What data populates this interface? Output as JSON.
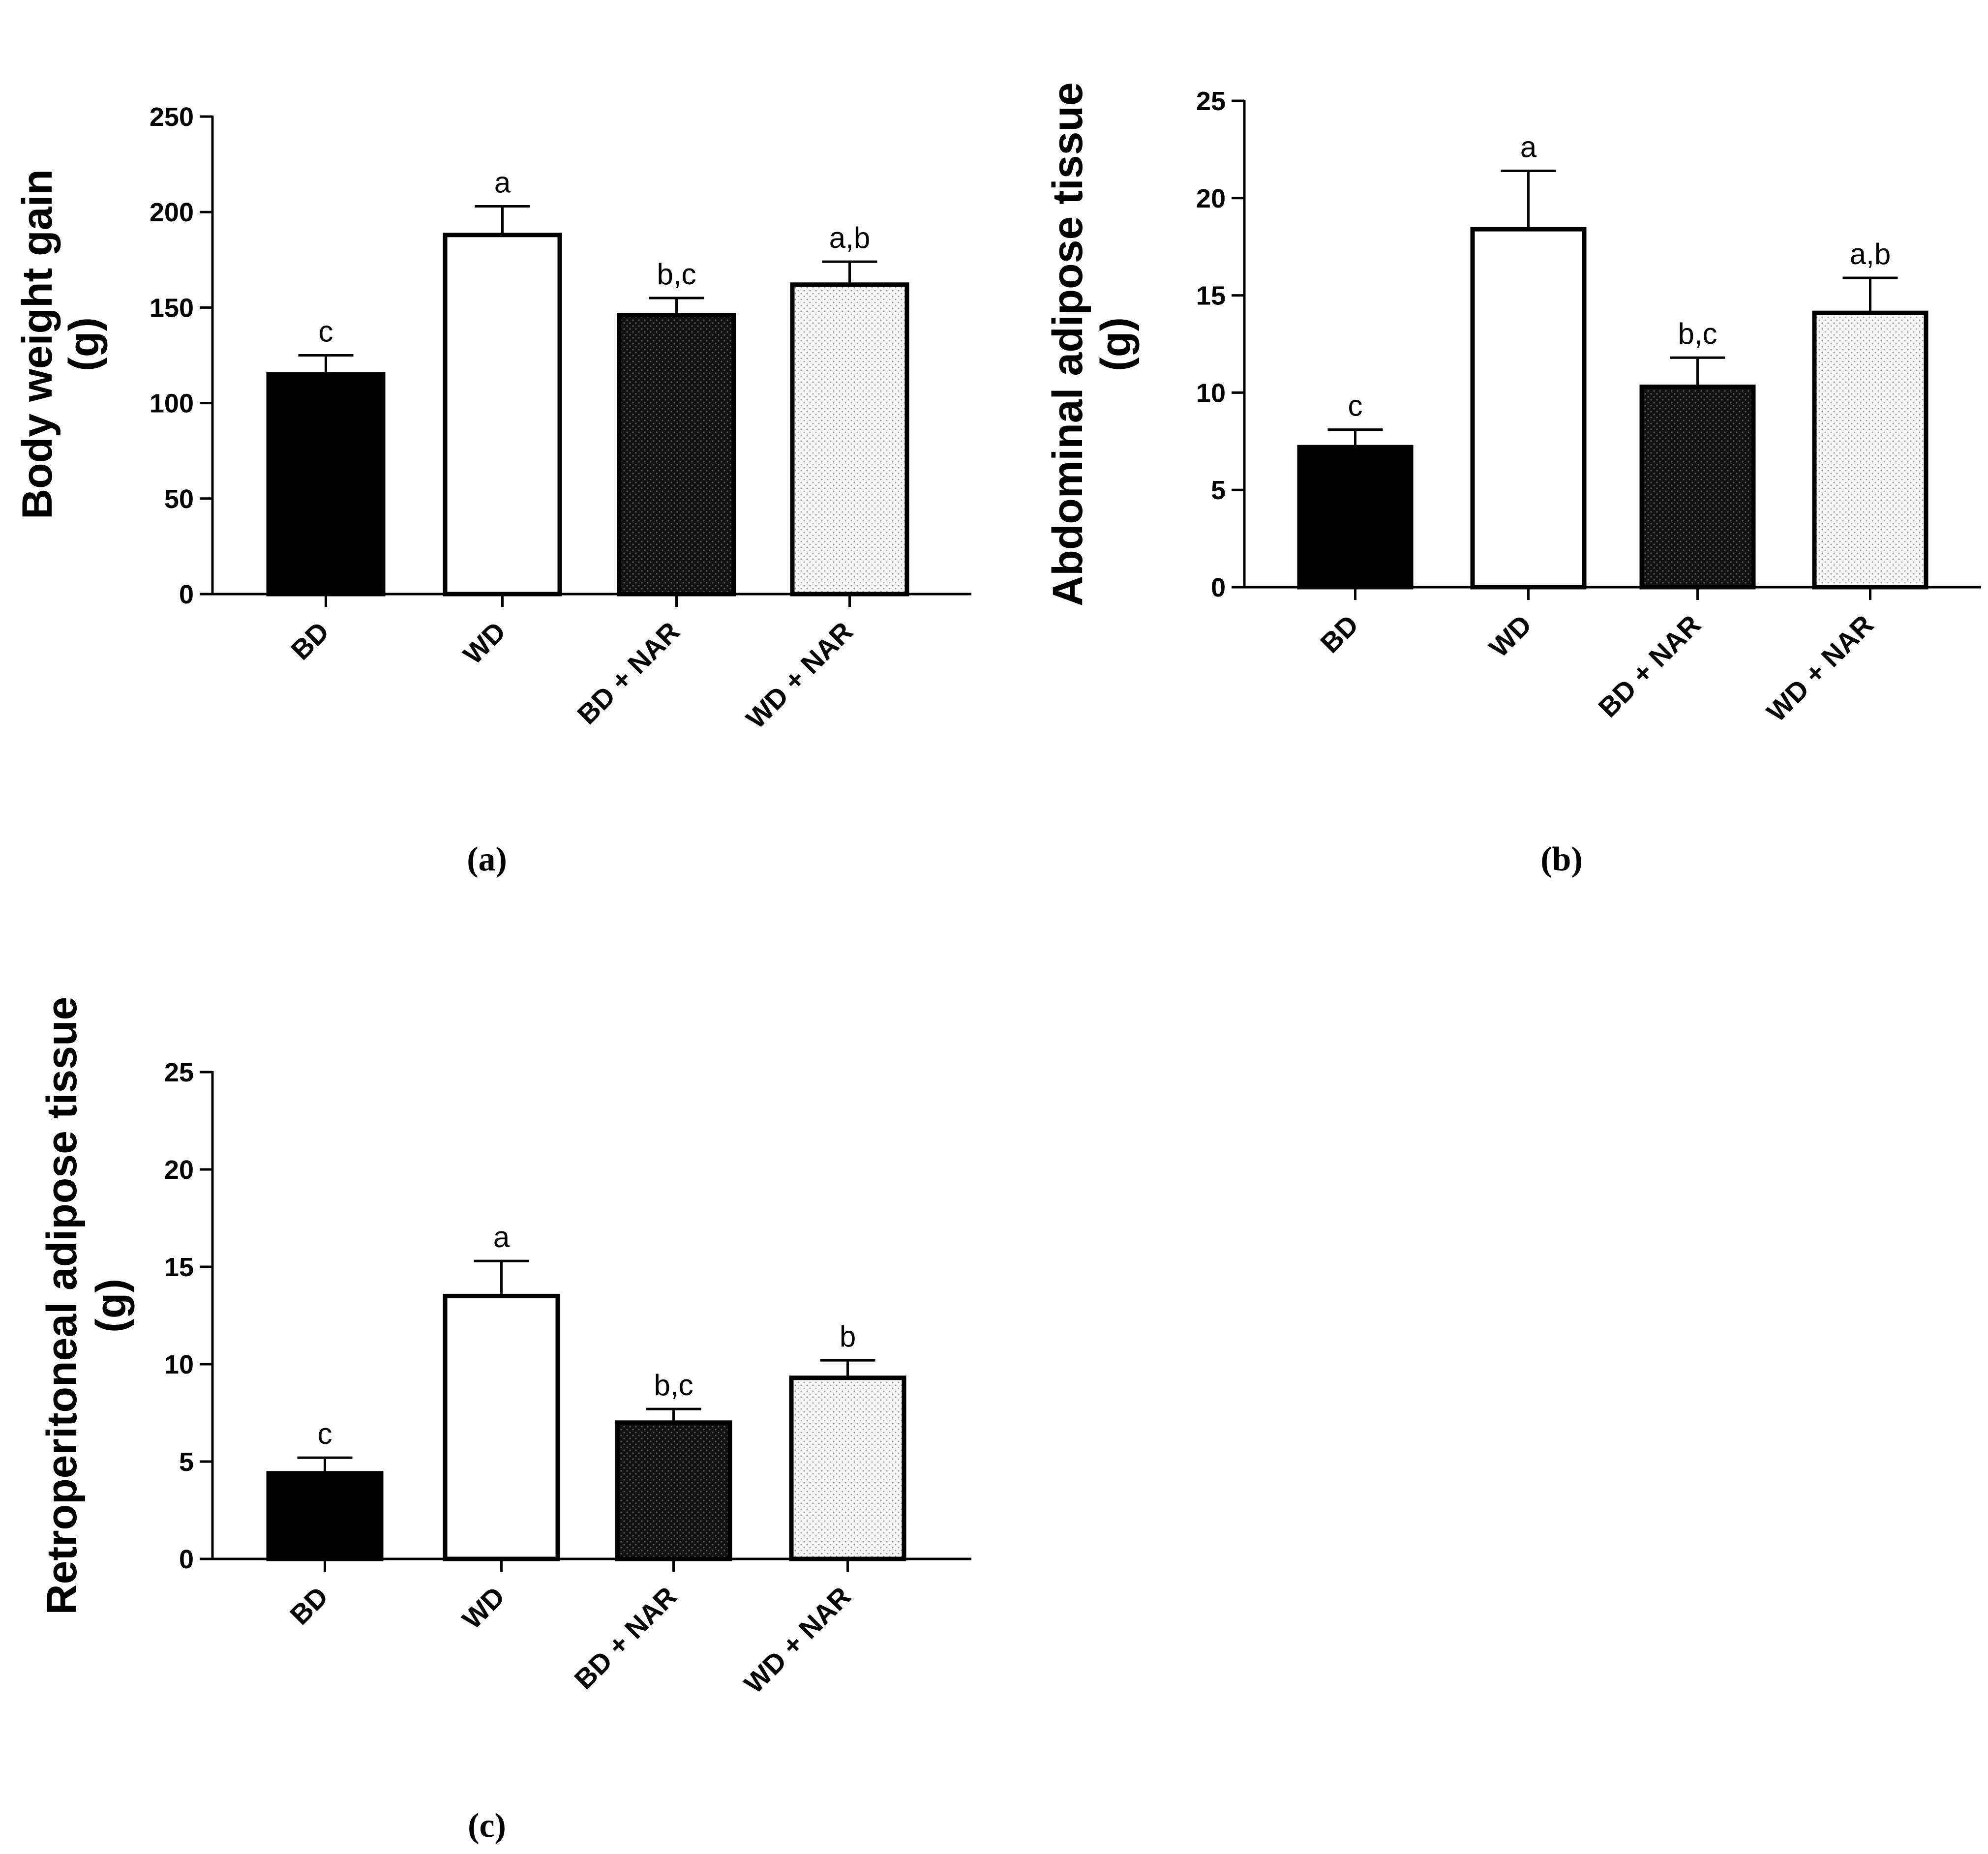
{
  "chart_data": [
    {
      "type": "bar",
      "panel_label": "(a)",
      "ylabel_line1": "Body weight gain",
      "ylabel_line2": "(g)",
      "categories": [
        "BD",
        "WD",
        "BD + NAR",
        "WD + NAR"
      ],
      "values": [
        115,
        188,
        146,
        162
      ],
      "errors": [
        10,
        15,
        9,
        12
      ],
      "significance": [
        "c",
        "a",
        "b,c",
        "a,b"
      ],
      "ylim": [
        0,
        250
      ],
      "yticks": [
        0,
        50,
        100,
        150,
        200,
        250
      ]
    },
    {
      "type": "bar",
      "panel_label": "(b)",
      "ylabel_line1": "Abdominal adipose tissue",
      "ylabel_line2": "(g)",
      "categories": [
        "BD",
        "WD",
        "BD + NAR",
        "WD + NAR"
      ],
      "values": [
        7.2,
        18.4,
        10.3,
        14.1
      ],
      "errors": [
        0.9,
        3.0,
        1.5,
        1.8
      ],
      "significance": [
        "c",
        "a",
        "b,c",
        "a,b"
      ],
      "ylim": [
        0,
        25
      ],
      "yticks": [
        0,
        5,
        10,
        15,
        20,
        25
      ]
    },
    {
      "type": "bar",
      "panel_label": "(c)",
      "ylabel_line1": "Retroperitoneal adipose tissue",
      "ylabel_line2": "(g)",
      "categories": [
        "BD",
        "WD",
        "BD + NAR",
        "WD + NAR"
      ],
      "values": [
        4.4,
        13.5,
        7.0,
        9.3
      ],
      "errors": [
        0.8,
        1.8,
        0.7,
        0.9
      ],
      "significance": [
        "c",
        "a",
        "b,c",
        "b"
      ],
      "ylim": [
        0,
        25
      ],
      "yticks": [
        0,
        5,
        10,
        15,
        20,
        25
      ]
    }
  ],
  "colors": {
    "axis": "#000000",
    "bar_BD": "#000000",
    "bar_WD": "#ffffff",
    "bar_BD_NAR": "#1c1c1c",
    "bar_WD_NAR": "#ececec"
  }
}
